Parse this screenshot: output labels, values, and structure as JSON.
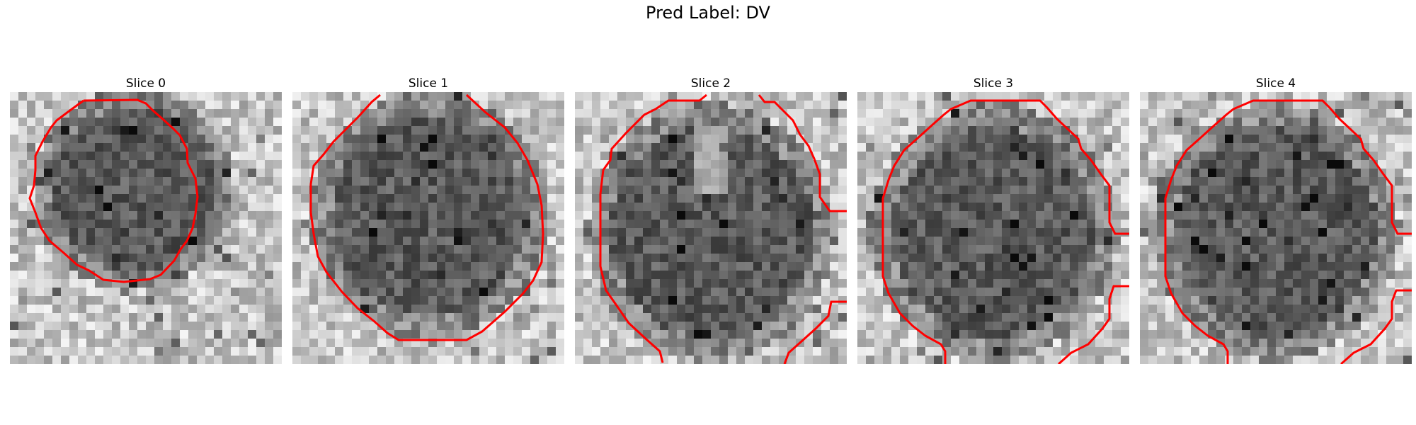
{
  "figure": {
    "suptitle": "Pred Label: DV"
  },
  "slices": [
    {
      "title": "Slice 0"
    },
    {
      "title": "Slice 1"
    },
    {
      "title": "Slice 2"
    },
    {
      "title": "Slice 3"
    },
    {
      "title": "Slice 4"
    }
  ],
  "colors": {
    "contour": "#ff0000",
    "colormap": "gray"
  }
}
